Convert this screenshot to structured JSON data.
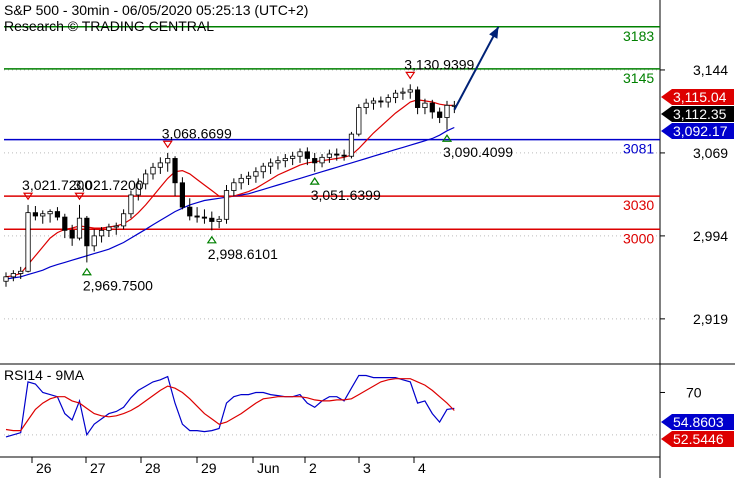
{
  "header": {
    "title": "S&P 500 - 30min - 06/05/2020 05:25:13 (UTC+2)",
    "source": "Research © TRADING CENTRAL"
  },
  "chart_data": [
    {
      "type": "candlestick",
      "title": "S&P 500 - 30min - 06/05/2020 05:25:13 (UTC+2)",
      "subtitle": "Research © TRADING CENTRAL",
      "ylim": [
        2880,
        3200
      ],
      "y_ticks": [
        "3,144",
        "3,069",
        "2,994",
        "2,919"
      ],
      "x_ticks": [
        "26",
        "27",
        "28",
        "29",
        "Jun",
        "2",
        "3",
        "4"
      ],
      "levels": [
        {
          "label": "3183",
          "value": 3183,
          "color": "#008000"
        },
        {
          "label": "3145",
          "value": 3145,
          "color": "#008000"
        },
        {
          "label": "3081",
          "value": 3081,
          "color": "#0000cc"
        },
        {
          "label": "3030",
          "value": 3030,
          "color": "#dd0000"
        },
        {
          "label": "3000",
          "value": 3000,
          "color": "#dd0000"
        }
      ],
      "price_tags": [
        {
          "label": "3,115.04",
          "value": 3115.04,
          "bg": "#dd0000",
          "fg": "#ffffff"
        },
        {
          "label": "3,112.35",
          "value": 3112.35,
          "bg": "#000000",
          "fg": "#ffffff"
        },
        {
          "label": "3,092.17",
          "value": 3092.17,
          "bg": "#0000cc",
          "fg": "#ffffff"
        }
      ],
      "pivots": [
        {
          "label": "3,021.7200",
          "bar": 3,
          "value": 3021.72,
          "kind": "high"
        },
        {
          "label": "3,021.7200",
          "bar": 10,
          "value": 3021.72,
          "kind": "high"
        },
        {
          "label": "2,969.7500",
          "bar": 11,
          "value": 2969.75,
          "kind": "low"
        },
        {
          "label": "3,068.6699",
          "bar": 22,
          "value": 3068.67,
          "kind": "high"
        },
        {
          "label": "2,998.6101",
          "bar": 28,
          "value": 2998.61,
          "kind": "low"
        },
        {
          "label": "3,051.6399",
          "bar": 42,
          "value": 3051.64,
          "kind": "low"
        },
        {
          "label": "3,130.9399",
          "bar": 55,
          "value": 3130.94,
          "kind": "high"
        },
        {
          "label": "3,090.4099",
          "bar": 60,
          "value": 3090.41,
          "kind": "low"
        }
      ],
      "arrow": {
        "from": [
          61,
          3108
        ],
        "to": [
          67,
          3183
        ],
        "color": "#002277"
      },
      "ohlc": [
        [
          2953,
          2961,
          2948,
          2957
        ],
        [
          2957,
          2963,
          2953,
          2960
        ],
        [
          2960,
          2966,
          2955,
          2962
        ],
        [
          2962,
          3022,
          2961,
          3015
        ],
        [
          3015,
          3021,
          3008,
          3012
        ],
        [
          3012,
          3017,
          3005,
          3014
        ],
        [
          3014,
          3018,
          3006,
          3016
        ],
        [
          3016,
          3020,
          3008,
          3011
        ],
        [
          3011,
          3014,
          2992,
          2999
        ],
        [
          2999,
          3004,
          2985,
          2992
        ],
        [
          2992,
          3022,
          2990,
          3010
        ],
        [
          3010,
          3012,
          2970,
          2985
        ],
        [
          2985,
          3000,
          2980,
          2994
        ],
        [
          2994,
          3002,
          2988,
          2999
        ],
        [
          2999,
          3005,
          2993,
          3002
        ],
        [
          3002,
          3006,
          2995,
          3003
        ],
        [
          3003,
          3018,
          3000,
          3014
        ],
        [
          3014,
          3035,
          3010,
          3031
        ],
        [
          3031,
          3046,
          3026,
          3041
        ],
        [
          3041,
          3054,
          3036,
          3050
        ],
        [
          3050,
          3060,
          3045,
          3056
        ],
        [
          3056,
          3065,
          3050,
          3060
        ],
        [
          3060,
          3069,
          3052,
          3064
        ],
        [
          3064,
          3066,
          3030,
          3042
        ],
        [
          3042,
          3047,
          3018,
          3020
        ],
        [
          3020,
          3028,
          3008,
          3012
        ],
        [
          3012,
          3020,
          3006,
          3011
        ],
        [
          3011,
          3018,
          3005,
          3010
        ],
        [
          3010,
          3016,
          2999,
          3007
        ],
        [
          3007,
          3012,
          3001,
          3009
        ],
        [
          3009,
          3040,
          3005,
          3035
        ],
        [
          3035,
          3046,
          3030,
          3042
        ],
        [
          3042,
          3050,
          3036,
          3046
        ],
        [
          3046,
          3052,
          3040,
          3048
        ],
        [
          3048,
          3056,
          3042,
          3052
        ],
        [
          3052,
          3060,
          3046,
          3057
        ],
        [
          3057,
          3064,
          3050,
          3060
        ],
        [
          3060,
          3066,
          3054,
          3062
        ],
        [
          3062,
          3068,
          3056,
          3064
        ],
        [
          3064,
          3070,
          3058,
          3066
        ],
        [
          3066,
          3073,
          3060,
          3070
        ],
        [
          3070,
          3074,
          3058,
          3064
        ],
        [
          3064,
          3069,
          3052,
          3060
        ],
        [
          3060,
          3068,
          3056,
          3065
        ],
        [
          3065,
          3072,
          3060,
          3068
        ],
        [
          3068,
          3073,
          3062,
          3067
        ],
        [
          3067,
          3072,
          3062,
          3066
        ],
        [
          3066,
          3088,
          3064,
          3086
        ],
        [
          3086,
          3113,
          3084,
          3110
        ],
        [
          3110,
          3118,
          3104,
          3114
        ],
        [
          3114,
          3119,
          3108,
          3116
        ],
        [
          3116,
          3120,
          3110,
          3115
        ],
        [
          3115,
          3122,
          3110,
          3119
        ],
        [
          3119,
          3126,
          3114,
          3123
        ],
        [
          3123,
          3128,
          3117,
          3124
        ],
        [
          3124,
          3131,
          3118,
          3126
        ],
        [
          3126,
          3129,
          3104,
          3110
        ],
        [
          3110,
          3118,
          3104,
          3114
        ],
        [
          3114,
          3117,
          3100,
          3106
        ],
        [
          3106,
          3110,
          3096,
          3101
        ],
        [
          3101,
          3116,
          3090,
          3112
        ],
        [
          3112,
          3116,
          3105,
          3112
        ]
      ],
      "ma_fast": [
        2957,
        2958,
        2960,
        2968,
        2976,
        2984,
        2992,
        2997,
        3000,
        3001,
        3003,
        3002,
        3001,
        3001,
        3002,
        3003,
        3005,
        3009,
        3015,
        3022,
        3030,
        3038,
        3046,
        3052,
        3053,
        3050,
        3045,
        3040,
        3035,
        3030,
        3029,
        3030,
        3032,
        3034,
        3037,
        3041,
        3045,
        3049,
        3052,
        3055,
        3058,
        3060,
        3061,
        3062,
        3063,
        3064,
        3065,
        3067,
        3073,
        3080,
        3087,
        3093,
        3099,
        3105,
        3110,
        3115,
        3117,
        3116,
        3115,
        3113,
        3112,
        3112
      ],
      "ma_slow": [
        2955,
        2956,
        2957,
        2959,
        2961,
        2963,
        2966,
        2968,
        2970,
        2972,
        2974,
        2976,
        2978,
        2980,
        2982,
        2985,
        2988,
        2992,
        2996,
        3000,
        3004,
        3008,
        3012,
        3016,
        3019,
        3022,
        3024,
        3026,
        3027,
        3028,
        3029,
        3030,
        3031,
        3032,
        3034,
        3036,
        3038,
        3040,
        3042,
        3044,
        3046,
        3048,
        3050,
        3052,
        3054,
        3056,
        3058,
        3060,
        3062,
        3064,
        3066,
        3068,
        3070,
        3072,
        3074,
        3076,
        3078,
        3080,
        3082,
        3085,
        3089,
        3092
      ]
    },
    {
      "type": "line",
      "title": "RSI14 - 9MA",
      "ylim": [
        10,
        95
      ],
      "y_ticks": [
        "70"
      ],
      "x_ticks": [
        "26",
        "27",
        "28",
        "29",
        "Jun",
        "2",
        "3",
        "4"
      ],
      "value_tags": [
        {
          "label": "54.8603",
          "value": 54.86,
          "bg": "#0000cc",
          "fg": "#ffffff"
        },
        {
          "label": "52.5446",
          "value": 52.54,
          "bg": "#dd0000",
          "fg": "#ffffff"
        }
      ],
      "series": [
        {
          "values": [
            28,
            30,
            32,
            80,
            78,
            70,
            68,
            66,
            50,
            44,
            62,
            30,
            40,
            45,
            50,
            52,
            56,
            65,
            72,
            76,
            80,
            82,
            85,
            60,
            40,
            34,
            34,
            33,
            34,
            36,
            60,
            66,
            68,
            68,
            70,
            70,
            68,
            67,
            66,
            66,
            68,
            60,
            56,
            62,
            66,
            66,
            62,
            74,
            86,
            86,
            84,
            84,
            84,
            84,
            82,
            80,
            60,
            62,
            50,
            42,
            54,
            55
          ],
          "color": "#0000cc"
        },
        {
          "values": [
            35,
            34,
            34,
            44,
            54,
            60,
            64,
            66,
            66,
            62,
            60,
            55,
            50,
            48,
            47,
            48,
            50,
            53,
            57,
            62,
            67,
            72,
            76,
            74,
            70,
            64,
            57,
            50,
            45,
            40,
            42,
            46,
            50,
            55,
            60,
            64,
            65,
            66,
            66,
            66,
            66,
            65,
            63,
            62,
            62,
            63,
            63,
            64,
            68,
            72,
            76,
            80,
            82,
            83,
            83,
            83,
            80,
            77,
            72,
            66,
            60,
            53
          ],
          "color": "#dd0000"
        }
      ]
    }
  ]
}
